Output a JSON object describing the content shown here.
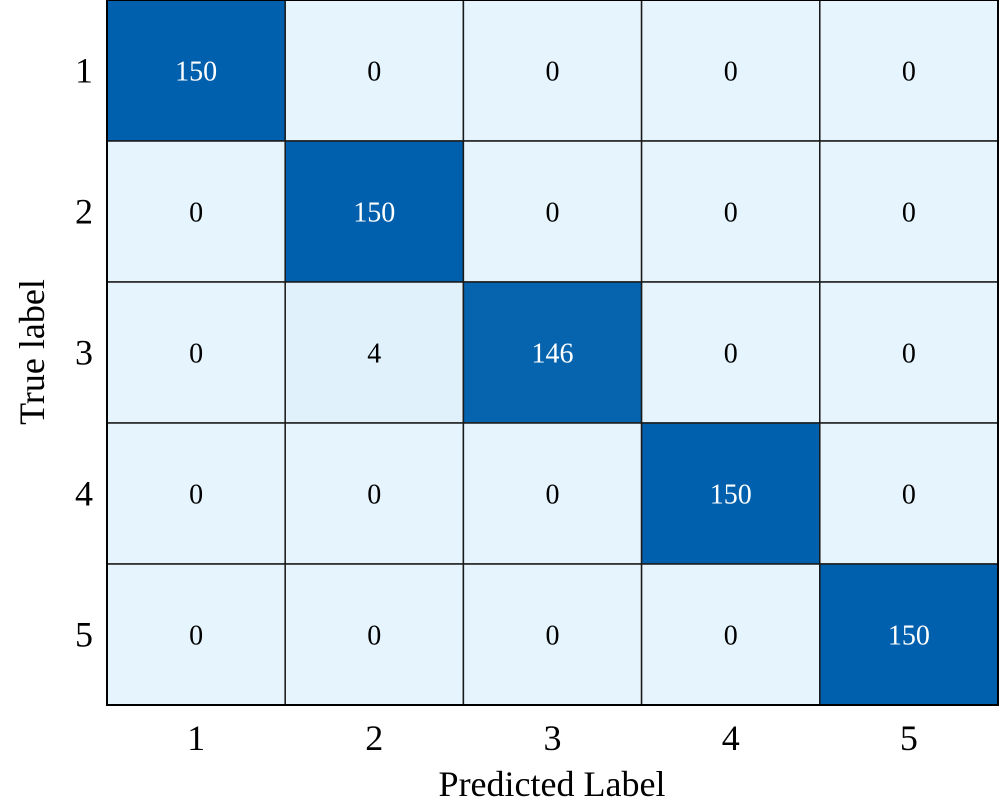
{
  "chart_data": {
    "type": "heatmap",
    "title": "",
    "xlabel": "Predicted Label",
    "ylabel": "True label",
    "x_categories": [
      "1",
      "2",
      "3",
      "4",
      "5"
    ],
    "y_categories": [
      "1",
      "2",
      "3",
      "4",
      "5"
    ],
    "values": [
      [
        150,
        0,
        0,
        0,
        0
      ],
      [
        0,
        150,
        0,
        0,
        0
      ],
      [
        0,
        4,
        146,
        0,
        0
      ],
      [
        0,
        0,
        0,
        150,
        0
      ],
      [
        0,
        0,
        0,
        0,
        150
      ]
    ],
    "color_low": "#e6f5fd",
    "color_high": "#0060ad",
    "text_dark": "#000000",
    "text_light": "#ffffff",
    "grid": true
  }
}
